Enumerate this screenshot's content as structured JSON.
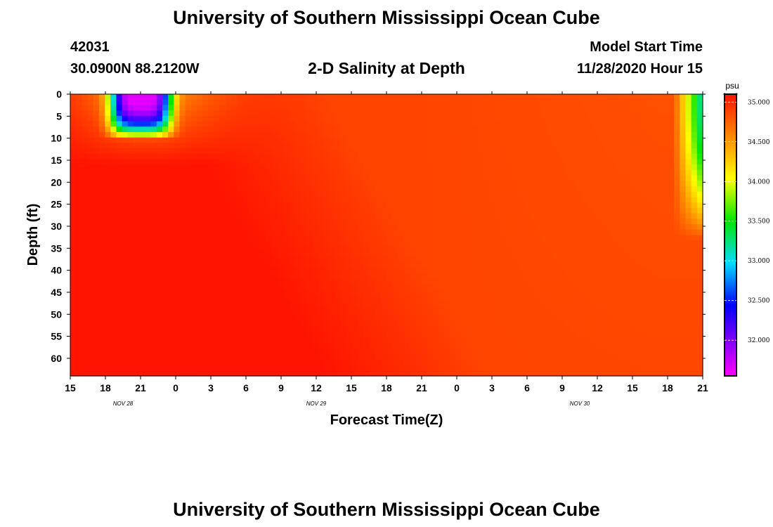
{
  "header": {
    "title_top": "University of Southern Mississippi Ocean Cube",
    "title_bottom": "University of Southern Mississippi Ocean Cube",
    "station_id": "42031",
    "coordinates": "30.0900N 88.2120W",
    "plot_title": "2-D Salinity at Depth",
    "model_start_label": "Model Start Time",
    "model_start_value": "11/28/2020 Hour 15"
  },
  "chart_data": {
    "type": "heatmap",
    "title": "2-D Salinity at Depth",
    "xlabel": "Forecast Time(Z)",
    "ylabel": "Depth (ft)",
    "x_tick_labels": [
      "15",
      "18",
      "21",
      "0",
      "3",
      "6",
      "9",
      "12",
      "15",
      "18",
      "21",
      "0",
      "3",
      "6",
      "9",
      "12",
      "15",
      "18",
      "21"
    ],
    "x_range_hours": [
      0,
      54
    ],
    "date_labels": [
      {
        "text": "NOV  28",
        "hour": 4.5
      },
      {
        "text": "NOV  29",
        "hour": 21
      },
      {
        "text": "NOV  30",
        "hour": 43.5
      }
    ],
    "y_tick_labels": [
      "0",
      "5",
      "10",
      "15",
      "20",
      "25",
      "30",
      "35",
      "40",
      "45",
      "50",
      "55",
      "60"
    ],
    "ylim": [
      0,
      64
    ],
    "y_inverted": true,
    "colorbar": {
      "unit": "psu",
      "range": [
        31.55,
        35.1
      ],
      "ticks": [
        "35.000",
        "34.500",
        "34.000",
        "33.500",
        "33.000",
        "32.500",
        "32.000"
      ],
      "tick_values": [
        35.0,
        34.5,
        34.0,
        33.5,
        33.0,
        32.5,
        32.0
      ]
    },
    "salinity_features": {
      "fresh_pool": {
        "hour_range": [
          3,
          9
        ],
        "depth_range": [
          0,
          10
        ],
        "min_psu": 31.7
      },
      "upper_mixed": {
        "hour_range": [
          1,
          12
        ],
        "depth_range": [
          0,
          12
        ]
      },
      "river_plume_right": {
        "hour_range": [
          52,
          54
        ],
        "depth_range": [
          0,
          32
        ],
        "min_psu": 33.5
      },
      "max_psu": 35.1,
      "background_psu": 34.9
    }
  }
}
